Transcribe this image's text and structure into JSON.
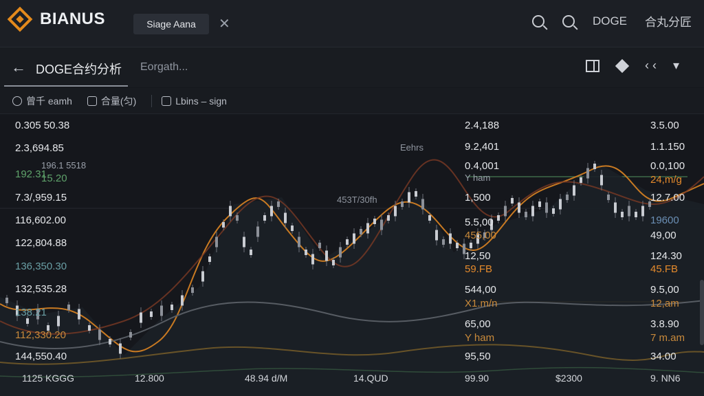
{
  "topbar": {
    "brand": "BIANUS",
    "tab_label": "Siage Aana",
    "close_glyph": "✕",
    "symbol": "DOGE",
    "right_text": "合丸分匠"
  },
  "titlebar": {
    "back_glyph": "←",
    "pair": "DOGE合约分析",
    "subtitle": "Eorgath...",
    "arrows": "‹ ‹",
    "dropdown": "▾"
  },
  "toolbar": {
    "items": [
      "曾千 eamh",
      "合量(匀)",
      "Lbins – sign"
    ]
  },
  "chart": {
    "left_labels": [
      "0.305 50.38",
      "2.3,694.85",
      "196.1 5518",
      "192.31",
      "15.20",
      "7.3/,959.15",
      "116,602.00",
      "122,804.88",
      "136,350.30",
      "132,535.28",
      "138.21",
      "112,330.20",
      "144,550.40"
    ],
    "mid_labels": [
      "Eehrs",
      "453T/30fh"
    ],
    "center_labels": [
      "2.4,188",
      "9.2,401",
      "0.4,001",
      "Y ham",
      "1,500",
      "5.5,00",
      "455,00",
      "12,50",
      "59.FB",
      "544,00",
      "X1.m/n",
      "65,00",
      "Y ham",
      "95,50"
    ],
    "right_labels": [
      "3.5.00",
      "1.1.150",
      "0.0,100",
      "24,m/g",
      "12.7.00",
      "19600",
      "49,00",
      "124.30",
      "45.FB",
      "9.5,00",
      "12,am",
      "3.8.90",
      "7 m.am",
      "34.00"
    ],
    "x_labels": [
      "1125 KGGG",
      "12.800",
      "48.94 d/M",
      "14.QUD",
      "99.90",
      "$2300",
      "9. NN6"
    ],
    "colors": {
      "candle_up": "#c9ccd2",
      "line_orange": "#c97a22",
      "line_brown": "#7a3a24",
      "line_gray": "#575c63",
      "line_green": "#3f6b4a",
      "line_olive": "#8a6a2a"
    }
  }
}
